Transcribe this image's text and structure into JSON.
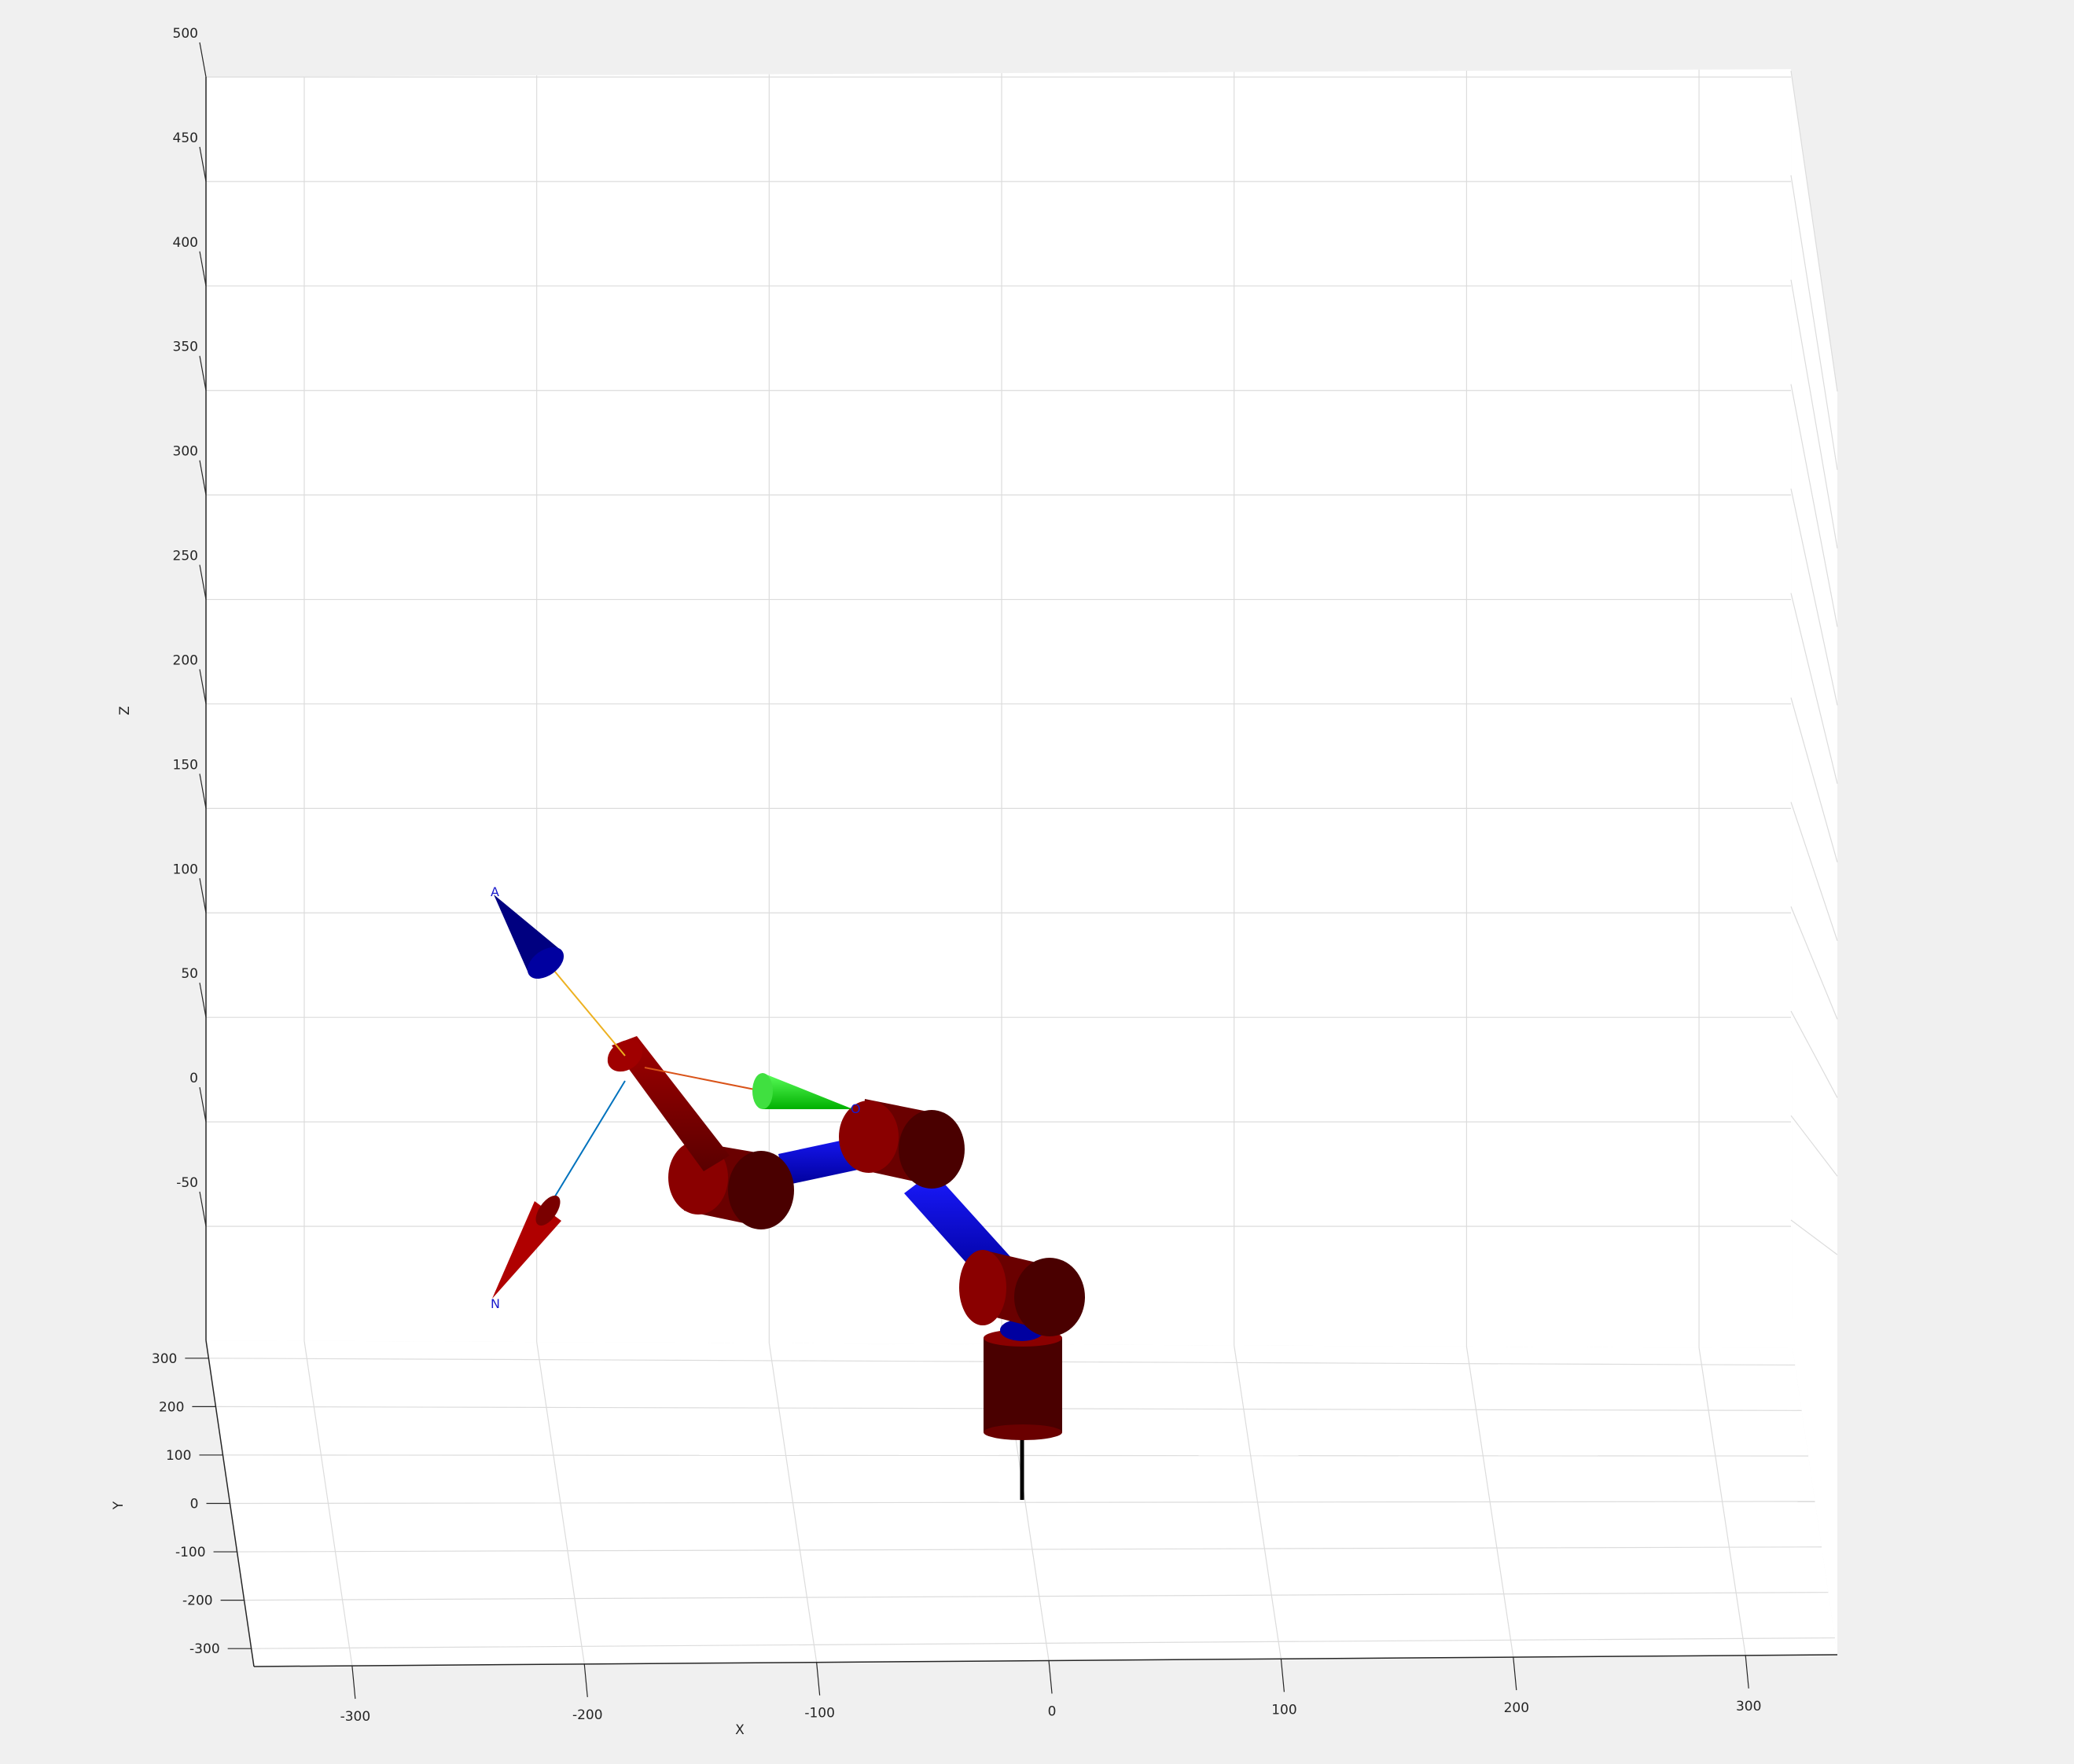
{
  "figure": {
    "colors": {
      "background": "#f0f0f0",
      "axes_face": "#ffffff",
      "grid": "#dcdcdc",
      "axis_line": "#262626",
      "joint": "#7a0000",
      "joint_dark": "#3d0000",
      "link": "#0000cc",
      "approach_axis": "#000080",
      "orient_axis": "#00d000",
      "normal_axis": "#b00000",
      "line_a": "#edb120",
      "line_o": "#d95319",
      "line_n": "#0072bd",
      "base_post": "#000000"
    },
    "axes": {
      "x_label": "X",
      "y_label": "Y",
      "z_label": "Z",
      "x_ticks": [
        "-300",
        "-200",
        "-100",
        "0",
        "100",
        "200",
        "300"
      ],
      "y_ticks": [
        "300",
        "200",
        "100",
        "0",
        "-100",
        "-200",
        "-300"
      ],
      "z_ticks": [
        "500",
        "450",
        "400",
        "350",
        "300",
        "250",
        "200",
        "150",
        "100",
        "50",
        "0",
        "-50"
      ],
      "x_range": [
        -300,
        300
      ],
      "y_range": [
        -300,
        300
      ],
      "z_range": [
        -50,
        500
      ],
      "grid": true
    },
    "robot": {
      "type": "6-axis serial manipulator",
      "frame_labels": {
        "approach": "A",
        "orient": "O",
        "normal": "N"
      }
    }
  }
}
